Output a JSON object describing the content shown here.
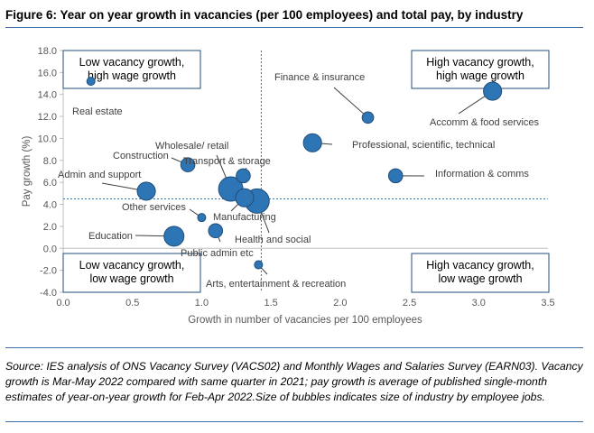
{
  "figure": {
    "title": "Figure 6: Year on year growth in vacancies (per 100 employees) and total pay, by industry",
    "source": "Source: IES analysis of ONS Vacancy Survey (VACS02) and Monthly Wages and Salaries Survey (EARN03). Vacancy growth is Mar-May 2022 compared with same quarter in 2021; pay growth is average of published single-month estimates of year-on-year growth for Feb-Apr 2022.Size of bubbles indicates size of industry by employee jobs."
  },
  "chart_data": {
    "type": "scatter",
    "xlabel": "Growth in number of vacancies per 100 employees",
    "ylabel": "Pay growth (%)",
    "xlim": [
      0,
      3.5
    ],
    "ylim": [
      -4,
      18
    ],
    "x_ticks": [
      "0.0",
      "0.5",
      "1.0",
      "1.5",
      "2.0",
      "2.5",
      "3.0",
      "3.5"
    ],
    "y_ticks": [
      "-4.0",
      "-2.0",
      "0.0",
      "2.0",
      "4.0",
      "6.0",
      "8.0",
      "10.0",
      "12.0",
      "14.0",
      "16.0",
      "18.0"
    ],
    "reference_lines": {
      "x": 1.43,
      "y": 4.5
    },
    "grid": false,
    "colors": {
      "bubble": "#2e75b6",
      "bubble_edge": "#1f4e79",
      "reference": "#2e75b6",
      "box_border": "#1f4e79"
    },
    "points": [
      {
        "label": "Real estate",
        "x": 0.2,
        "y": 15.2,
        "size": 1
      },
      {
        "label": "Finance & insurance",
        "x": 2.2,
        "y": 11.9,
        "size": 2
      },
      {
        "label": "Accomm & food services",
        "x": 3.1,
        "y": 14.3,
        "size": 5
      },
      {
        "label": "Professional, scientific, technical",
        "x": 1.8,
        "y": 9.6,
        "size": 5
      },
      {
        "label": "Construction",
        "x": 0.9,
        "y": 7.6,
        "size": 3
      },
      {
        "label": "Wholesale/ retail",
        "x": 1.21,
        "y": 5.4,
        "size": 9
      },
      {
        "label": "Transport & storage",
        "x": 1.3,
        "y": 6.6,
        "size": 3
      },
      {
        "label": "Information & comms",
        "x": 2.4,
        "y": 6.6,
        "size": 3
      },
      {
        "label": "Admin and support",
        "x": 0.6,
        "y": 5.2,
        "size": 5
      },
      {
        "label": "Health and social",
        "x": 1.4,
        "y": 4.3,
        "size": 9
      },
      {
        "label": "Manufacturing",
        "x": 1.31,
        "y": 4.6,
        "size": 5
      },
      {
        "label": "Other services",
        "x": 1.0,
        "y": 2.8,
        "size": 1
      },
      {
        "label": "Education",
        "x": 0.8,
        "y": 1.1,
        "size": 6
      },
      {
        "label": "Public admin etc",
        "x": 1.1,
        "y": 1.6,
        "size": 3
      },
      {
        "label": "Arts, entertainment & recreation",
        "x": 1.41,
        "y": -1.5,
        "size": 1
      }
    ],
    "quadrants": [
      {
        "line1": "Low vacancy growth,",
        "line2": "high wage growth"
      },
      {
        "line1": "High vacancy growth,",
        "line2": "high wage growth"
      },
      {
        "line1": "Low vacancy growth,",
        "line2": "low wage growth"
      },
      {
        "line1": "High vacancy growth,",
        "line2": "low wage growth"
      }
    ]
  }
}
